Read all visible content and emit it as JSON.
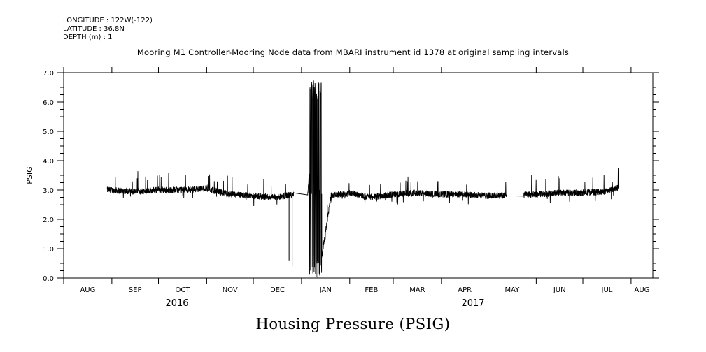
{
  "header": {
    "longitude": "LONGITUDE : 122W(-122)",
    "latitude": "LATITUDE : 36.8N",
    "depth": "DEPTH (m) : 1"
  },
  "footer_title": "Housing Pressure (PSIG)",
  "chart_data": {
    "type": "line",
    "title": "Mooring M1 Controller-Mooring Node data from MBARI instrument id 1378 at original sampling intervals",
    "xlabel": "",
    "ylabel": "PSIG",
    "ylim": [
      0.0,
      7.0
    ],
    "yticks": [
      "0.0",
      "1.0",
      "2.0",
      "3.0",
      "4.0",
      "5.0",
      "6.0",
      "7.0"
    ],
    "xlim": [
      "2016-08-01",
      "2017-08-15"
    ],
    "month_labels": [
      "AUG",
      "SEP",
      "OCT",
      "NOV",
      "DEC",
      "JAN",
      "FEB",
      "MAR",
      "APR",
      "MAY",
      "JUN",
      "JUL",
      "AUG"
    ],
    "year_labels": [
      "2016",
      "2017"
    ],
    "grid": false,
    "series": [
      {
        "values_by_month": [
          {
            "x": "2016-08-29",
            "y": 3.0
          },
          {
            "x": "2016-09-15",
            "y": 2.95
          },
          {
            "x": "2016-10-01",
            "y": 3.0
          },
          {
            "x": "2016-10-15",
            "y": 3.0
          },
          {
            "x": "2016-11-01",
            "y": 3.05
          },
          {
            "x": "2016-11-15",
            "y": 2.85
          },
          {
            "x": "2016-12-01",
            "y": 2.8
          },
          {
            "x": "2016-12-15",
            "y": 2.75
          },
          {
            "x": "2016-12-27",
            "y": 2.85
          },
          {
            "x": "2017-01-05",
            "y": 2.83
          },
          {
            "x": "2017-01-10",
            "y": 6.7
          },
          {
            "x": "2017-01-12",
            "y": 0.05
          },
          {
            "x": "2017-01-20",
            "y": 2.8
          },
          {
            "x": "2017-02-01",
            "y": 2.9
          },
          {
            "x": "2017-02-15",
            "y": 2.75
          },
          {
            "x": "2017-03-01",
            "y": 2.85
          },
          {
            "x": "2017-03-15",
            "y": 2.9
          },
          {
            "x": "2017-04-01",
            "y": 2.85
          },
          {
            "x": "2017-04-15",
            "y": 2.85
          },
          {
            "x": "2017-05-01",
            "y": 2.8
          },
          {
            "x": "2017-05-15",
            "y": 2.82
          },
          {
            "x": "2017-06-01",
            "y": 2.85
          },
          {
            "x": "2017-06-15",
            "y": 2.9
          },
          {
            "x": "2017-07-01",
            "y": 2.9
          },
          {
            "x": "2017-07-15",
            "y": 2.95
          },
          {
            "x": "2017-07-24",
            "y": 3.1
          }
        ]
      }
    ]
  }
}
